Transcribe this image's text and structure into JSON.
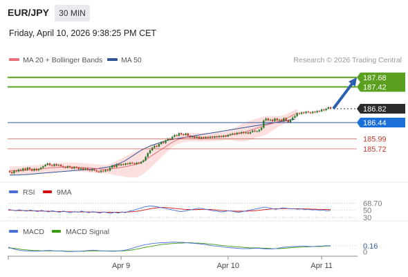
{
  "header": {
    "pair": "EUR/JPY",
    "timeframe": "30 MIN",
    "datetime": "Friday, April 10, 2026 9:38:25 PM CET",
    "credit": "Research © 2026 Trading Central"
  },
  "colors": {
    "ma20": "#e8707a",
    "ma50": "#2f5597",
    "band_fill": "#fbd9d9",
    "up": "#2a7a2a",
    "down": "#c0392b",
    "resistance": "#5aa01e",
    "support": "#c0392b",
    "pivot": "#1a6fd8",
    "current": "#2b2b2b",
    "rsi": "#4a6fd8",
    "rsi_ma": "#d01010",
    "macd": "#4a6fd8",
    "macd_signal": "#3a9a10",
    "arrow": "#2a5fb0"
  },
  "chart_data": [
    {
      "type": "candlestick",
      "title": "",
      "legend": [
        {
          "name": "MA 20 + Bollinger Bands",
          "color": "#e8707a"
        },
        {
          "name": "MA 50",
          "color": "#2f5597"
        }
      ],
      "x_ticks": [
        {
          "label": "Apr 9",
          "index": 50
        },
        {
          "label": "Apr 10",
          "index": 98
        },
        {
          "label": "Apr 11",
          "index": 140
        }
      ],
      "ylim": [
        184.9,
        188.0
      ],
      "levels": [
        {
          "value": 187.68,
          "label": "187.68",
          "kind": "resistance"
        },
        {
          "value": 187.42,
          "label": "187.42",
          "kind": "resistance"
        },
        {
          "value": 186.82,
          "label": "186.82",
          "kind": "current"
        },
        {
          "value": 186.44,
          "label": "186.44",
          "kind": "pivot"
        },
        {
          "value": 185.99,
          "label": "185.99",
          "kind": "support"
        },
        {
          "value": 185.72,
          "label": "185.72",
          "kind": "support"
        }
      ],
      "arrow": {
        "from_value": 186.82,
        "to_value": 187.68
      },
      "closes": [
        185.08,
        185.05,
        185.12,
        185.1,
        185.15,
        185.12,
        185.18,
        185.14,
        185.2,
        185.16,
        185.12,
        185.17,
        185.13,
        185.16,
        185.2,
        185.24,
        185.28,
        185.32,
        185.27,
        185.25,
        185.3,
        185.26,
        185.28,
        185.24,
        185.22,
        185.2,
        185.24,
        185.21,
        185.18,
        185.22,
        185.2,
        185.16,
        185.19,
        185.15,
        185.18,
        185.14,
        185.12,
        185.16,
        185.13,
        185.1,
        185.08,
        185.12,
        185.1,
        185.14,
        185.12,
        185.2,
        185.26,
        185.22,
        185.3,
        185.27,
        185.3,
        185.28,
        185.32,
        185.3,
        185.34,
        185.32,
        185.3,
        185.34,
        185.32,
        185.36,
        185.4,
        185.5,
        185.6,
        185.68,
        185.75,
        185.8,
        185.78,
        185.85,
        185.9,
        185.88,
        185.95,
        186.0,
        185.98,
        186.05,
        186.1,
        186.08,
        186.15,
        186.12,
        186.1,
        186.14,
        186.08,
        186.04,
        186.06,
        186.02,
        186.05,
        186.0,
        186.03,
        186.01,
        186.04,
        186.02,
        186.05,
        186.03,
        186.06,
        186.04,
        186.07,
        186.05,
        186.08,
        186.06,
        186.1,
        186.12,
        186.14,
        186.12,
        186.16,
        186.14,
        186.18,
        186.15,
        186.17,
        186.14,
        186.18,
        186.22,
        186.2,
        186.2,
        186.24,
        186.3,
        186.5,
        186.55,
        186.5,
        186.52,
        186.48,
        186.55,
        186.5,
        186.52,
        186.48,
        186.56,
        186.5,
        186.45,
        186.52,
        186.58,
        186.62,
        186.7,
        186.68,
        186.72,
        186.7,
        186.74,
        186.72,
        186.7,
        186.74,
        186.72,
        186.76,
        186.75,
        186.8,
        186.78,
        186.82,
        186.86,
        186.82
      ],
      "ma20": [
        185.12,
        185.12,
        185.12,
        185.12,
        185.12,
        185.12,
        185.13,
        185.13,
        185.14,
        185.14,
        185.14,
        185.15,
        185.15,
        185.16,
        185.17,
        185.18,
        185.18,
        185.19,
        185.2,
        185.2,
        185.2,
        185.21,
        185.21,
        185.22,
        185.22,
        185.22,
        185.22,
        185.22,
        185.22,
        185.22,
        185.22,
        185.21,
        185.21,
        185.21,
        185.2,
        185.2,
        185.19,
        185.19,
        185.18,
        185.18,
        185.17,
        185.16,
        185.16,
        185.16,
        185.16,
        185.17,
        185.17,
        185.18,
        185.19,
        185.2,
        185.21,
        185.22,
        185.23,
        185.24,
        185.26,
        185.27,
        185.28,
        185.3,
        185.32,
        185.35,
        185.38,
        185.42,
        185.46,
        185.5,
        185.54,
        185.58,
        185.62,
        185.66,
        185.7,
        185.74,
        185.78,
        185.82,
        185.86,
        185.9,
        185.93,
        185.96,
        185.98,
        186.0,
        186.02,
        186.03,
        186.04,
        186.04,
        186.04,
        186.04,
        186.04,
        186.04,
        186.04,
        186.04,
        186.04,
        186.04,
        186.04,
        186.05,
        186.05,
        186.05,
        186.06,
        186.06,
        186.07,
        186.08,
        186.09,
        186.1,
        186.11,
        186.12,
        186.13,
        186.14,
        186.16,
        186.17,
        186.19,
        186.21,
        186.23,
        186.25,
        186.27,
        186.29,
        186.31,
        186.33,
        186.35,
        186.37,
        186.38,
        186.4,
        186.42,
        186.44,
        186.46,
        186.48,
        186.5,
        186.52,
        186.55,
        186.58,
        186.61,
        186.64,
        186.67,
        186.7
      ],
      "band_width": [
        0.12,
        0.12,
        0.12,
        0.12,
        0.12,
        0.12,
        0.12,
        0.12,
        0.12,
        0.12,
        0.12,
        0.12,
        0.12,
        0.12,
        0.12,
        0.12,
        0.12,
        0.12,
        0.12,
        0.12,
        0.12,
        0.12,
        0.12,
        0.12,
        0.12,
        0.12,
        0.12,
        0.12,
        0.12,
        0.12,
        0.12,
        0.12,
        0.12,
        0.12,
        0.12,
        0.12,
        0.12,
        0.12,
        0.12,
        0.12,
        0.12,
        0.12,
        0.12,
        0.12,
        0.12,
        0.14,
        0.16,
        0.18,
        0.2,
        0.22,
        0.24,
        0.26,
        0.28,
        0.3,
        0.32,
        0.34,
        0.35,
        0.36,
        0.36,
        0.36,
        0.35,
        0.34,
        0.33,
        0.32,
        0.3,
        0.28,
        0.26,
        0.24,
        0.22,
        0.2,
        0.18,
        0.16,
        0.14,
        0.13,
        0.12,
        0.12,
        0.12,
        0.12,
        0.12,
        0.12,
        0.12,
        0.12,
        0.12,
        0.12,
        0.12,
        0.12,
        0.12,
        0.12,
        0.12,
        0.12,
        0.12,
        0.12,
        0.12,
        0.12,
        0.12,
        0.12,
        0.12,
        0.12,
        0.12,
        0.14,
        0.16,
        0.18,
        0.2,
        0.22,
        0.24,
        0.26,
        0.26,
        0.26,
        0.26,
        0.26,
        0.26,
        0.26,
        0.26,
        0.26,
        0.26,
        0.26,
        0.24,
        0.22,
        0.2,
        0.18,
        0.16,
        0.14,
        0.13,
        0.12,
        0.12,
        0.12,
        0.12,
        0.12,
        0.12,
        0.12
      ],
      "ma50": [
        185.0,
        185.0,
        185.0,
        185.0,
        185.0,
        185.01,
        185.01,
        185.01,
        185.02,
        185.02,
        185.03,
        185.03,
        185.04,
        185.04,
        185.05,
        185.05,
        185.06,
        185.06,
        185.07,
        185.07,
        185.08,
        185.08,
        185.09,
        185.09,
        185.1,
        185.1,
        185.11,
        185.11,
        185.12,
        185.12,
        185.13,
        185.13,
        185.14,
        185.14,
        185.15,
        185.15,
        185.16,
        185.16,
        185.17,
        185.17,
        185.18,
        185.19,
        185.2,
        185.21,
        185.22,
        185.23,
        185.25,
        185.27,
        185.29,
        185.31,
        185.34,
        185.37,
        185.4,
        185.44,
        185.48,
        185.52,
        185.56,
        185.6,
        185.64,
        185.68,
        185.71,
        185.74,
        185.77,
        185.8,
        185.82,
        185.84,
        185.86,
        185.88,
        185.9,
        185.92,
        185.94,
        185.96,
        185.97,
        185.98,
        185.99,
        186.0,
        186.01,
        186.02,
        186.03,
        186.04,
        186.05,
        186.06,
        186.07,
        186.08,
        186.09,
        186.1,
        186.11,
        186.12,
        186.13,
        186.14,
        186.15,
        186.16,
        186.17,
        186.18,
        186.19,
        186.2,
        186.21,
        186.22,
        186.23,
        186.24,
        186.25,
        186.26,
        186.27,
        186.28,
        186.29,
        186.3,
        186.31,
        186.32,
        186.33,
        186.34,
        186.35,
        186.36,
        186.37,
        186.38,
        186.39,
        186.4,
        186.41,
        186.42,
        186.43,
        186.44,
        186.45,
        186.46,
        186.47,
        186.48,
        186.49,
        186.5,
        186.51,
        186.52,
        186.53
      ]
    },
    {
      "type": "line",
      "title": "",
      "legend": [
        {
          "name": "RSI",
          "color": "#4a6fd8"
        },
        {
          "name": "9MA",
          "color": "#d01010"
        }
      ],
      "ylim": [
        30,
        75
      ],
      "levels": [
        {
          "value": 68.7,
          "label": "68.70"
        },
        {
          "value": 50,
          "label": "50"
        },
        {
          "value": 30,
          "label": "30"
        }
      ],
      "rsi": [
        52,
        50,
        48,
        51,
        49,
        47,
        50,
        48,
        46,
        49,
        47,
        45,
        48,
        46,
        44,
        47,
        45,
        43,
        46,
        44,
        47,
        45,
        43,
        46,
        44,
        42,
        45,
        43,
        41,
        44,
        42,
        45,
        43,
        47,
        49,
        52,
        55,
        58,
        60,
        61,
        60,
        58,
        56,
        54,
        52,
        50,
        48,
        46,
        47,
        49,
        51,
        53,
        55,
        54,
        52,
        50,
        48,
        47,
        45,
        46,
        48,
        47,
        45,
        44,
        46,
        48,
        50,
        52,
        54,
        56,
        58,
        56,
        54,
        52,
        54,
        56,
        55,
        53,
        54,
        52,
        53,
        51,
        52,
        50,
        51,
        49,
        50,
        48,
        49
      ],
      "rsi_ma": [
        50,
        49.5,
        49,
        48.8,
        48.6,
        48.4,
        48.2,
        48,
        47.6,
        47.3,
        47,
        46.8,
        46.5,
        46.2,
        46,
        45.8,
        45.6,
        45.4,
        45.2,
        45,
        45,
        44.9,
        44.8,
        44.7,
        44.6,
        44.5,
        44.4,
        44.3,
        44.2,
        44.2,
        44.1,
        44.2,
        44.4,
        44.8,
        45.5,
        46.5,
        48,
        50,
        52,
        54,
        55.5,
        56.5,
        57,
        56.8,
        56,
        55,
        54,
        53,
        52,
        51.5,
        51,
        51,
        51.5,
        52,
        52,
        51.5,
        51,
        50,
        49,
        48.5,
        48,
        47.5,
        47,
        46.8,
        46.8,
        47,
        47.5,
        48.2,
        49,
        50,
        51,
        52,
        53,
        53.5,
        53.8,
        54,
        54,
        53.8,
        53.6,
        53.4,
        53.2,
        53,
        52.8,
        52.5,
        52.2,
        52,
        51.8,
        51.5,
        51.2
      ]
    },
    {
      "type": "line",
      "title": "",
      "legend": [
        {
          "name": "MACD",
          "color": "#4a6fd8"
        },
        {
          "name": "MACD Signal",
          "color": "#3a9a10"
        }
      ],
      "ylim": [
        -0.05,
        0.4
      ],
      "levels": [
        {
          "value": 0.16,
          "label": "0.16"
        },
        {
          "value": 0,
          "label": "0"
        }
      ],
      "macd": [
        0.12,
        0.08,
        0.05,
        0.03,
        0.02,
        0.02,
        0.01,
        0.01,
        0.02,
        0.03,
        0.03,
        0.02,
        0.02,
        0.01,
        0.0,
        0.0,
        0.01,
        0.01,
        0.02,
        0.03,
        0.04,
        0.03,
        0.02,
        0.02,
        0.01,
        0.01,
        0.02,
        0.03,
        0.05,
        0.08,
        0.12,
        0.15,
        0.18,
        0.2,
        0.22,
        0.23,
        0.24,
        0.24,
        0.25,
        0.26,
        0.25,
        0.25,
        0.24,
        0.23,
        0.22,
        0.21,
        0.2,
        0.18,
        0.16,
        0.15,
        0.14,
        0.12,
        0.11,
        0.1,
        0.09,
        0.08,
        0.08,
        0.08,
        0.09,
        0.09,
        0.08,
        0.07,
        0.07,
        0.08,
        0.1,
        0.12,
        0.13,
        0.14,
        0.14,
        0.15,
        0.15,
        0.14,
        0.14,
        0.15,
        0.15,
        0.16,
        0.16
      ],
      "macd_signal": [
        0.1,
        0.09,
        0.08,
        0.06,
        0.05,
        0.04,
        0.03,
        0.03,
        0.02,
        0.02,
        0.02,
        0.02,
        0.02,
        0.02,
        0.01,
        0.01,
        0.01,
        0.01,
        0.01,
        0.02,
        0.02,
        0.02,
        0.02,
        0.02,
        0.02,
        0.02,
        0.02,
        0.02,
        0.03,
        0.04,
        0.06,
        0.08,
        0.11,
        0.13,
        0.15,
        0.17,
        0.19,
        0.2,
        0.21,
        0.22,
        0.23,
        0.23,
        0.24,
        0.24,
        0.23,
        0.23,
        0.22,
        0.21,
        0.2,
        0.19,
        0.17,
        0.16,
        0.15,
        0.14,
        0.13,
        0.12,
        0.11,
        0.1,
        0.1,
        0.1,
        0.09,
        0.09,
        0.08,
        0.08,
        0.08,
        0.09,
        0.1,
        0.11,
        0.12,
        0.12,
        0.13,
        0.13,
        0.14,
        0.14,
        0.14,
        0.15,
        0.15
      ]
    }
  ]
}
